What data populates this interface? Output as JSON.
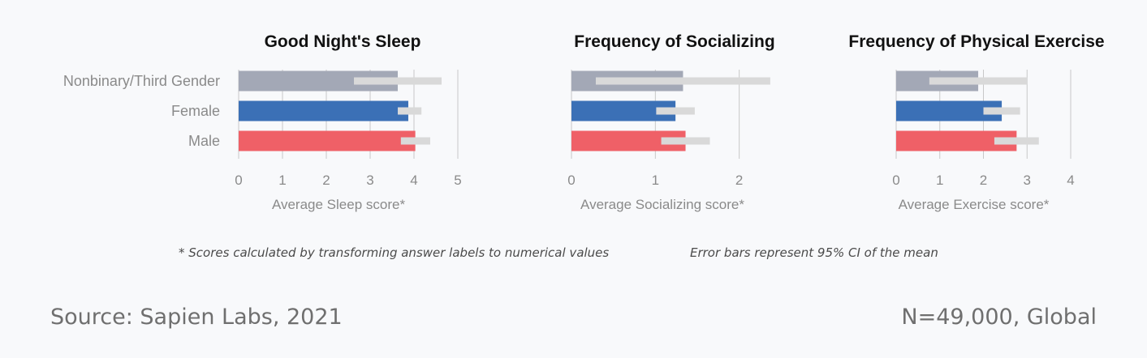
{
  "chart_data": [
    {
      "type": "bar",
      "orientation": "horizontal",
      "title": "Good Night's Sleep",
      "xlabel": "Average Sleep score*",
      "categories": [
        "Nonbinary/Third Gender",
        "Female",
        "Male"
      ],
      "values": [
        3.63,
        3.87,
        4.03
      ],
      "error_low": [
        2.63,
        3.63,
        3.7
      ],
      "error_high": [
        4.63,
        4.17,
        4.37
      ],
      "xlim": [
        0,
        5
      ],
      "xticks": [
        "0",
        "1",
        "2",
        "3",
        "4",
        "5"
      ],
      "grid": true,
      "colors": [
        "#a3a8b6",
        "#3b70b6",
        "#ef6067"
      ]
    },
    {
      "type": "bar",
      "orientation": "horizontal",
      "title": "Frequency of Socializing",
      "xlabel": "Average Socializing score*",
      "categories": [
        "Nonbinary/Third Gender",
        "Female",
        "Male"
      ],
      "values": [
        1.33,
        1.24,
        1.36
      ],
      "error_low": [
        0.29,
        1.01,
        1.07
      ],
      "error_high": [
        2.37,
        1.47,
        1.65
      ],
      "xlim": [
        0,
        2.4
      ],
      "xticks": [
        "0",
        "1",
        "2"
      ],
      "grid": true,
      "colors": [
        "#a3a8b6",
        "#3b70b6",
        "#ef6067"
      ]
    },
    {
      "type": "bar",
      "orientation": "horizontal",
      "title": "Frequency of Physical Exercise",
      "xlabel": "Average Exercise score*",
      "categories": [
        "Nonbinary/Third Gender",
        "Female",
        "Male"
      ],
      "values": [
        1.88,
        2.42,
        2.76
      ],
      "error_low": [
        0.76,
        2.0,
        2.25
      ],
      "error_high": [
        3.0,
        2.84,
        3.27
      ],
      "xlim": [
        0,
        4
      ],
      "xticks": [
        "0",
        "1",
        "2",
        "3",
        "4"
      ],
      "grid": true,
      "colors": [
        "#a3a8b6",
        "#3b70b6",
        "#ef6067"
      ]
    }
  ],
  "notes": {
    "scores": "* Scores calculated by transforming answer labels to numerical values",
    "error_bars": "Error bars represent 95% CI of the mean"
  },
  "footer": {
    "source": "Source: Sapien Labs, 2021",
    "sample": "N=49,000, Global"
  },
  "colors": {
    "error_bar": "#d9d9d9",
    "grid": "#c8c8c8",
    "axis_text": "#8a8a8a",
    "background": "#f8f9fb"
  }
}
